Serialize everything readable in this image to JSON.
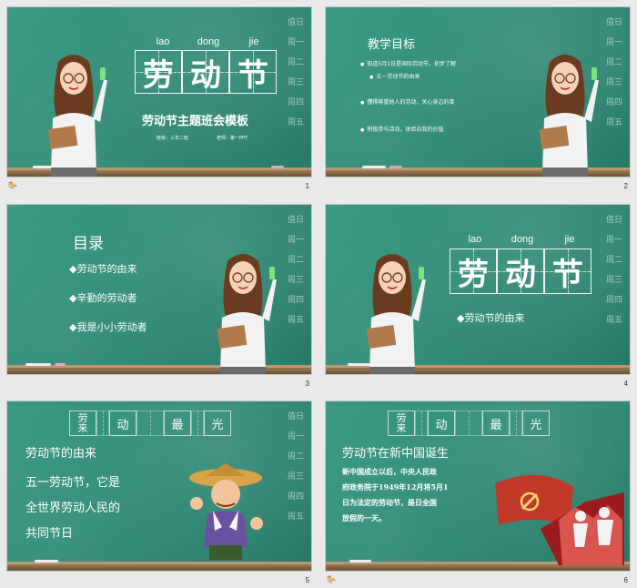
{
  "slides": [
    {
      "number": "1",
      "pinyin": [
        "lao",
        "dong",
        "jie"
      ],
      "title_chars": [
        "劳",
        "动",
        "节"
      ],
      "subtitle": "劳动节主题班会模板",
      "meta_left": "班级：三年二班",
      "meta_right": "老师：第一PPT"
    },
    {
      "number": "2",
      "heading": "教学目标",
      "bullets": [
        "知道5月1日是国际劳动节，初步了解",
        "五一劳动节的由来",
        "懂得尊重他人的劳动，关心身边的事",
        "积极参与活动，体验自我的价值"
      ]
    },
    {
      "number": "3",
      "heading": "目录",
      "items": [
        "◆劳动节的由来",
        "◆辛勤的劳动者",
        "◆我是小小劳动者"
      ]
    },
    {
      "number": "4",
      "pinyin": [
        "lao",
        "dong",
        "jie"
      ],
      "title_chars": [
        "劳",
        "动",
        "节"
      ],
      "section": "◆劳动节的由来"
    },
    {
      "number": "5",
      "boxes": [
        "劳\n来",
        "",
        "动",
        "",
        "最",
        "",
        "光"
      ],
      "heading": "劳动节的由来",
      "lines": [
        "五一劳动节，它是",
        "全世界劳动人民的",
        "共同节日"
      ]
    },
    {
      "number": "6",
      "boxes": [
        "劳\n来",
        "",
        "动",
        "",
        "最",
        "",
        "光"
      ],
      "heading": "劳动节在新中国诞生",
      "lines": [
        "新中国成立以后，中央人民政",
        "府政务院于1949年12月将5月1",
        "日为法定的劳动节，是日全国",
        "放假的一天。"
      ]
    }
  ],
  "weekdays": [
    "值日",
    "周一",
    "周二",
    "周三",
    "周四",
    "周五"
  ],
  "footer_icon": "🐎",
  "colors": {
    "board": "#2e8873",
    "frame": "#6e5236",
    "accent_red": "#c0392b"
  }
}
